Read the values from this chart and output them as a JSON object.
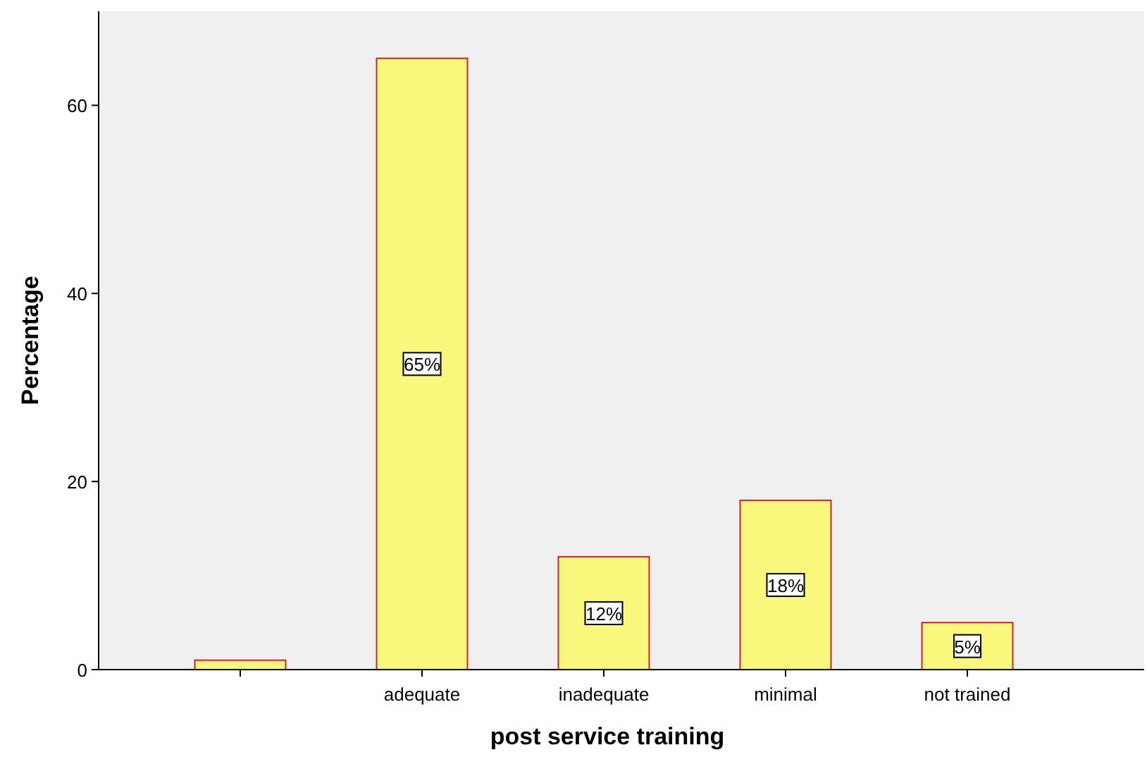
{
  "chart_data": {
    "type": "bar",
    "xlabel": "post service training",
    "ylabel": "Percentage",
    "categories": [
      null,
      "adequate",
      "inadequate",
      "minimal",
      "not trained"
    ],
    "values": [
      1,
      65,
      12,
      18,
      5
    ],
    "value_labels": [
      null,
      "65%",
      "12%",
      "18%",
      "5%"
    ],
    "color": "#f8f77b",
    "ylim": [
      0,
      70
    ],
    "yticks": [
      0,
      20,
      40,
      60
    ],
    "grid": false
  }
}
